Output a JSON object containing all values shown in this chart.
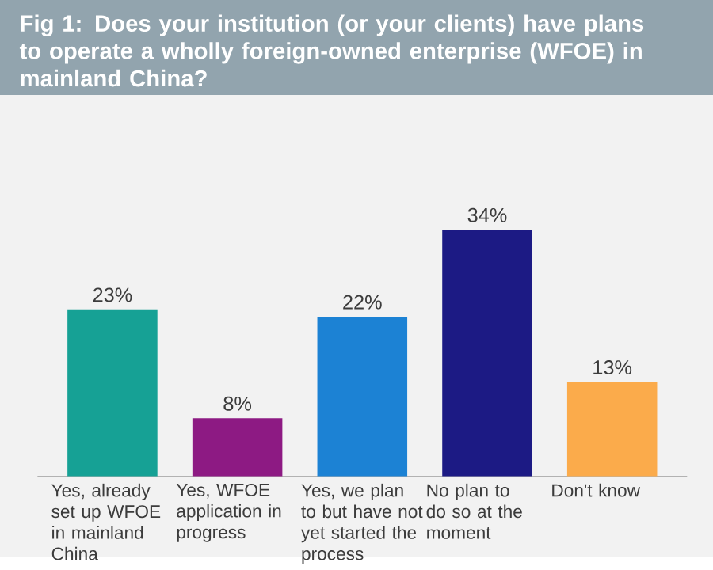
{
  "chart_data": {
    "type": "bar",
    "title": "Fig 1: Does your institution (or your clients) have plans to operate a wholly foreign-owned enterprise (WFOE) in mainland China?",
    "categories": [
      "Yes, already set up WFOE in mainland China",
      "Yes, WFOE application in progress",
      "Yes, we plan to but have not yet started the process",
      "No plan to do so at the moment",
      "Don't know"
    ],
    "values": [
      23,
      8,
      22,
      34,
      13
    ],
    "value_labels": [
      "23%",
      "8%",
      "22%",
      "34%",
      "13%"
    ],
    "colors": [
      "#16a195",
      "#8d1a83",
      "#1c82d4",
      "#1c1a84",
      "#fbab4b"
    ]
  }
}
